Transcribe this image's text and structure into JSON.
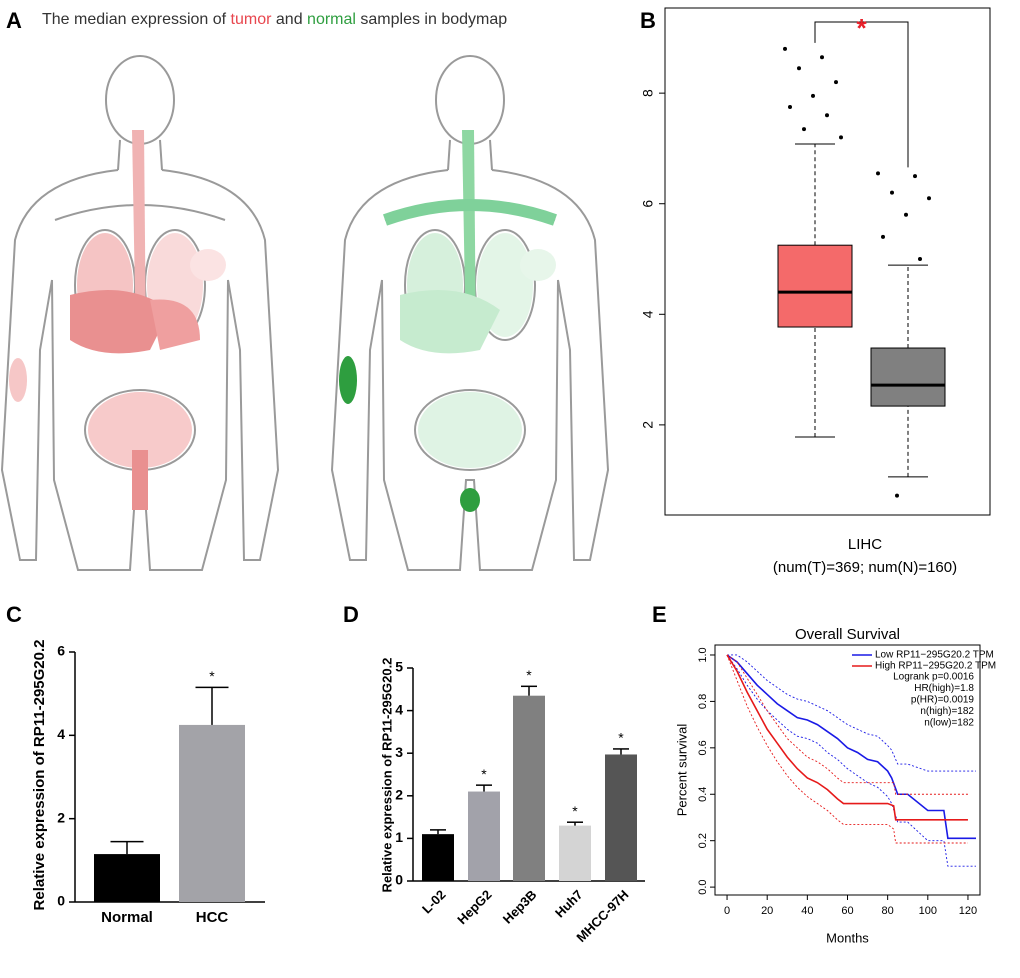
{
  "figure_a": {
    "panel_label": "A",
    "title_segments": [
      {
        "text": "The median expression of ",
        "color": "#333333"
      },
      {
        "text": "tumor",
        "color": "#e8474f"
      },
      {
        "text": " and ",
        "color": "#333333"
      },
      {
        "text": "normal",
        "color": "#2e9e3f"
      },
      {
        "text": " samples in bodymap",
        "color": "#333333"
      }
    ]
  },
  "chart_data": [
    {
      "type": "box",
      "panel_label": "B",
      "x_label": "LIHC",
      "subtitle": "(num(T)=369; num(N)=160)",
      "significance": "*",
      "significance_color": "#e8202a",
      "ylim": [
        0.37,
        9.54
      ],
      "yticks": [
        2,
        4,
        6,
        8
      ],
      "boxes": [
        {
          "color": "#f46a6a",
          "whisker_low": 1.78,
          "q1": 3.77,
          "median": 4.4,
          "q3": 5.25,
          "whisker_high": 7.08,
          "outliers": [
            8.8,
            8.65,
            8.45,
            8.2,
            7.95,
            7.75,
            7.6,
            7.35,
            7.2
          ]
        },
        {
          "color": "#808080",
          "whisker_low": 1.06,
          "q1": 2.34,
          "median": 2.72,
          "q3": 3.39,
          "whisker_high": 4.89,
          "outliers": [
            6.55,
            6.5,
            6.2,
            6.1,
            5.8,
            5.4,
            5.0,
            0.72
          ]
        }
      ]
    },
    {
      "type": "bar",
      "panel_label": "C",
      "y_label": "Relative expression of RP11-295G20.2",
      "categories": [
        "Normal",
        "HCC"
      ],
      "values": [
        1.15,
        4.25
      ],
      "errors": [
        0.3,
        0.9
      ],
      "colors": [
        "#000000",
        "#a3a3a8"
      ],
      "ylim": [
        0,
        6
      ],
      "yticks": [
        0,
        2,
        4,
        6
      ],
      "significant": [
        false,
        true
      ],
      "significance": "*"
    },
    {
      "type": "bar",
      "panel_label": "D",
      "y_label": "Relative expression of RP11-295G20.2",
      "categories": [
        "L-02",
        "HepG2",
        "Hep3B",
        "Huh7",
        "MHCC-97H"
      ],
      "values": [
        1.1,
        2.1,
        4.35,
        1.3,
        2.97
      ],
      "errors": [
        0.1,
        0.15,
        0.22,
        0.08,
        0.13
      ],
      "colors": [
        "#000000",
        "#a2a2aa",
        "#808080",
        "#d4d4d4",
        "#555555"
      ],
      "ylim": [
        0,
        5
      ],
      "yticks": [
        0,
        1,
        2,
        3,
        4,
        5
      ],
      "significant": [
        false,
        true,
        true,
        true,
        true
      ],
      "significance": "*"
    },
    {
      "type": "line",
      "panel_label": "E",
      "title": "Overall Survival",
      "x_label": "Months",
      "y_label": "Percent survival",
      "xlim": [
        -6,
        126
      ],
      "xticks": [
        0,
        20,
        40,
        60,
        80,
        100,
        120
      ],
      "ylim": [
        -0.034,
        1.043
      ],
      "yticks": [
        {
          "value": 0,
          "label": "0.0"
        },
        0.2,
        0.4,
        0.6,
        0.8,
        {
          "value": 1,
          "label": "1.0"
        }
      ],
      "series": [
        {
          "name": "Low RP11−295G20.2 TPM",
          "color": "#1a1ae6",
          "x": [
            0,
            5,
            10,
            15,
            20,
            25,
            30,
            35,
            40,
            45,
            50,
            55,
            60,
            65,
            70,
            75,
            80,
            82,
            85,
            90,
            100,
            108,
            110,
            124
          ],
          "values": [
            1,
            0.97,
            0.92,
            0.87,
            0.83,
            0.79,
            0.76,
            0.73,
            0.72,
            0.7,
            0.67,
            0.64,
            0.6,
            0.58,
            0.55,
            0.54,
            0.5,
            0.47,
            0.4,
            0.4,
            0.33,
            0.33,
            0.21,
            0.21
          ],
          "ci_upper": [
            1,
            1,
            0.97,
            0.93,
            0.89,
            0.86,
            0.83,
            0.81,
            0.8,
            0.78,
            0.76,
            0.73,
            0.7,
            0.68,
            0.66,
            0.65,
            0.61,
            0.59,
            0.53,
            0.53,
            0.5,
            0.5,
            0.5,
            0.5
          ],
          "ci_lower": [
            1,
            0.94,
            0.87,
            0.81,
            0.76,
            0.72,
            0.68,
            0.65,
            0.64,
            0.62,
            0.58,
            0.55,
            0.51,
            0.48,
            0.45,
            0.43,
            0.39,
            0.36,
            0.28,
            0.28,
            0.2,
            0.2,
            0.09,
            0.09
          ]
        },
        {
          "name": "High RP11−295G20.2 TPM",
          "color": "#e61a1a",
          "x": [
            0,
            5,
            10,
            15,
            20,
            25,
            30,
            35,
            40,
            45,
            50,
            55,
            58,
            70,
            80,
            83,
            84,
            100,
            120
          ],
          "values": [
            1,
            0.93,
            0.84,
            0.76,
            0.68,
            0.62,
            0.56,
            0.51,
            0.47,
            0.45,
            0.42,
            0.38,
            0.36,
            0.36,
            0.36,
            0.35,
            0.29,
            0.29,
            0.29
          ],
          "ci_upper": [
            1,
            0.97,
            0.9,
            0.83,
            0.76,
            0.7,
            0.64,
            0.6,
            0.56,
            0.54,
            0.51,
            0.47,
            0.45,
            0.45,
            0.45,
            0.45,
            0.4,
            0.4,
            0.4
          ],
          "ci_lower": [
            1,
            0.89,
            0.78,
            0.69,
            0.61,
            0.54,
            0.48,
            0.43,
            0.39,
            0.36,
            0.33,
            0.29,
            0.27,
            0.27,
            0.27,
            0.25,
            0.19,
            0.19,
            0.19
          ]
        }
      ],
      "annotations": [
        "Logrank p=0.0016",
        "HR(high)=1.8",
        "p(HR)=0.0019",
        "n(high)=182",
        "n(low)=182"
      ]
    }
  ]
}
